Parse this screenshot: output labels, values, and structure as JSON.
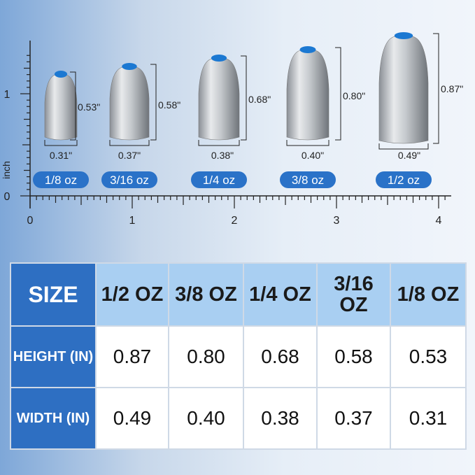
{
  "ruler": {
    "unit": "inch",
    "x_labels": [
      "0",
      "1",
      "2",
      "3",
      "4"
    ],
    "y_labels": [
      "0",
      "1"
    ]
  },
  "weights": [
    {
      "label": "1/8 oz",
      "height": "0.53\"",
      "width": "0.31\""
    },
    {
      "label": "3/16 oz",
      "height": "0.58\"",
      "width": "0.37\""
    },
    {
      "label": "1/4 oz",
      "height": "0.68\"",
      "width": "0.38\""
    },
    {
      "label": "3/8 oz",
      "height": "0.80\"",
      "width": "0.40\""
    },
    {
      "label": "1/2 oz",
      "height": "0.87\"",
      "width": "0.49\""
    }
  ],
  "table": {
    "header": [
      "SIZE",
      "1/2 OZ",
      "3/8 OZ",
      "1/4 OZ",
      "3/16 OZ",
      "1/8 OZ"
    ],
    "rows": [
      [
        "HEIGHT (IN)",
        "0.87",
        "0.80",
        "0.68",
        "0.58",
        "0.53"
      ],
      [
        "WIDTH (IN)",
        "0.49",
        "0.40",
        "0.38",
        "0.37",
        "0.31"
      ]
    ]
  }
}
